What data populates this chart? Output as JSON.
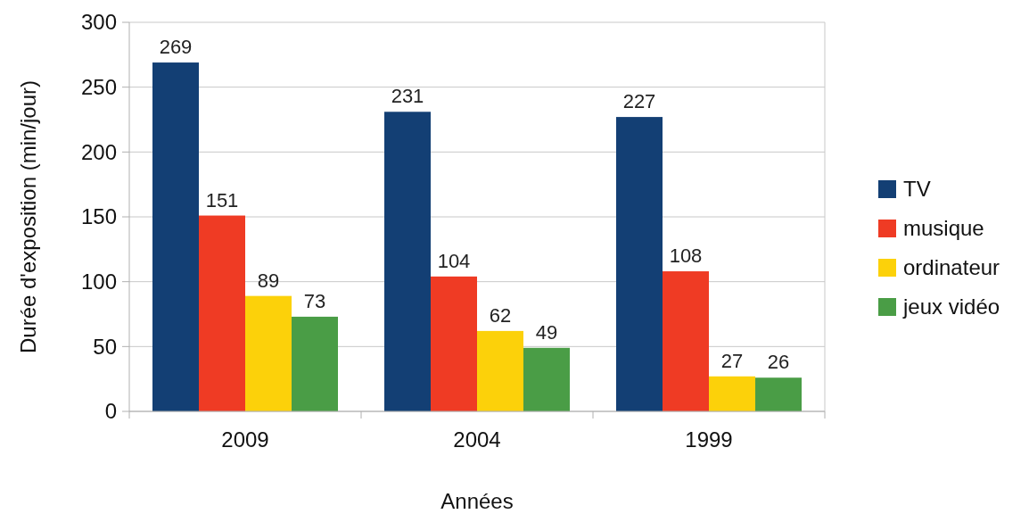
{
  "chart_data": {
    "type": "bar",
    "xlabel": "Années",
    "ylabel": "Durée d'exposition (min/jour)",
    "categories": [
      "2009",
      "2004",
      "1999"
    ],
    "series": [
      {
        "name": "TV",
        "color": "#133f74",
        "values": [
          269,
          231,
          227
        ]
      },
      {
        "name": "musique",
        "color": "#ef3b24",
        "values": [
          151,
          104,
          108
        ]
      },
      {
        "name": "ordinateur",
        "color": "#fcd10a",
        "values": [
          89,
          62,
          27
        ]
      },
      {
        "name": "jeux vidéo",
        "color": "#4a9d46",
        "values": [
          73,
          49,
          26
        ]
      }
    ],
    "ylim": [
      0,
      300
    ],
    "yticks": [
      0,
      50,
      100,
      150,
      200,
      250,
      300
    ],
    "grid": "y",
    "legend": "right",
    "data_labels": true
  }
}
